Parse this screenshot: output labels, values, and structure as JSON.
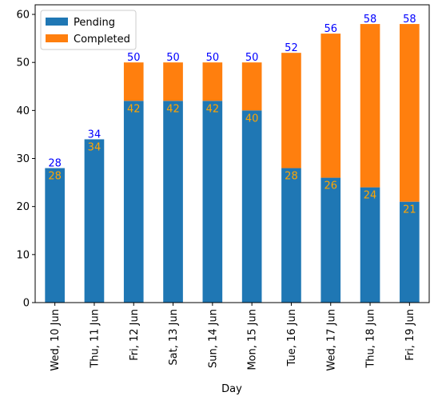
{
  "chart_data": {
    "type": "bar",
    "stacked": true,
    "title": "",
    "xlabel": "Day",
    "ylabel": "",
    "ylim": [
      0,
      62
    ],
    "yticks": [
      0,
      10,
      20,
      30,
      40,
      50,
      60
    ],
    "categories": [
      "Wed, 10 Jun",
      "Thu, 11 Jun",
      "Fri, 12 Jun",
      "Sat, 13 Jun",
      "Sun, 14 Jun",
      "Mon, 15 Jun",
      "Tue, 16 Jun",
      "Wed, 17 Jun",
      "Thu, 18 Jun",
      "Fri, 19 Jun"
    ],
    "series": [
      {
        "name": "Pending",
        "color": "#1f77b4",
        "values": [
          28,
          34,
          42,
          42,
          42,
          40,
          28,
          26,
          24,
          21
        ]
      },
      {
        "name": "Completed",
        "color": "#ff7f0e",
        "values": [
          0,
          0,
          8,
          8,
          8,
          10,
          24,
          30,
          34,
          37
        ]
      }
    ],
    "totals": [
      28,
      34,
      50,
      50,
      50,
      50,
      52,
      56,
      58,
      58
    ],
    "total_label_color": "#0000ff",
    "inner_label_color": "#ffa500",
    "legend_position": "upper left",
    "grid": false
  }
}
